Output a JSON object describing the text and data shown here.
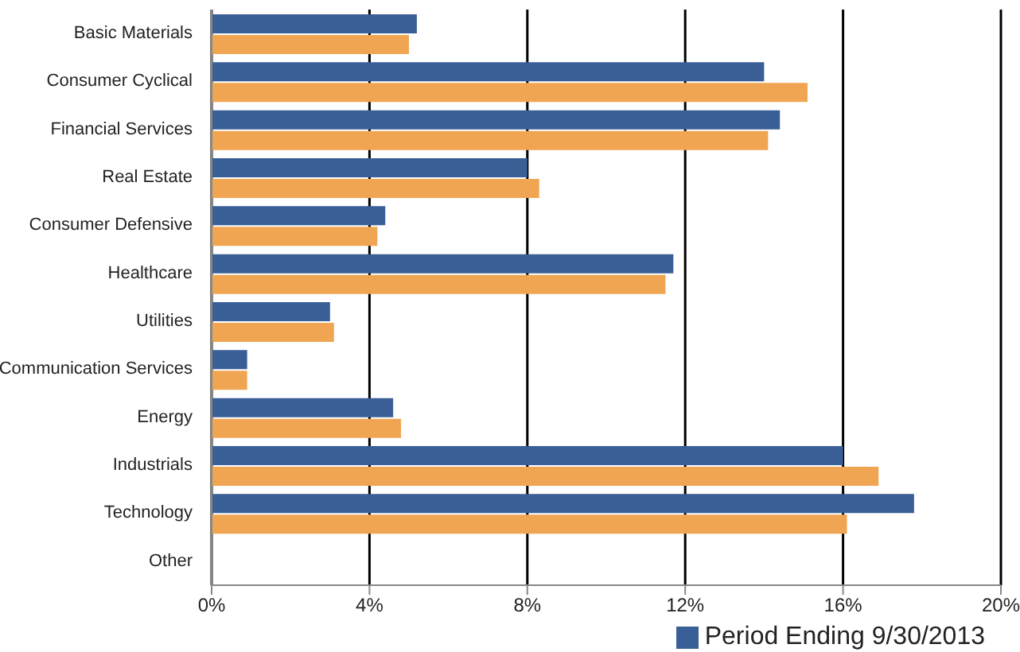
{
  "chart_data": {
    "type": "bar",
    "orientation": "horizontal",
    "categories": [
      "Basic Materials",
      "Consumer Cyclical",
      "Financial Services",
      "Real Estate",
      "Consumer Defensive",
      "Healthcare",
      "Utilities",
      "Communication Services",
      "Energy",
      "Industrials",
      "Technology",
      "Other"
    ],
    "series": [
      {
        "name": "Period Ending 9/30/2013",
        "color": "#3a5f96",
        "values": [
          5.2,
          14.0,
          14.4,
          8.0,
          4.4,
          11.7,
          3.0,
          0.9,
          4.6,
          16.0,
          17.8,
          null
        ]
      },
      {
        "color": "#f0a552",
        "values": [
          5.0,
          15.1,
          14.1,
          8.3,
          4.2,
          11.5,
          3.1,
          0.9,
          4.8,
          16.9,
          16.1,
          null
        ]
      }
    ],
    "xlim": [
      0,
      20
    ],
    "xticks": [
      {
        "value": 0,
        "label": "0%"
      },
      {
        "value": 4,
        "label": "4%"
      },
      {
        "value": 8,
        "label": "8%"
      },
      {
        "value": 12,
        "label": "12%"
      },
      {
        "value": 16,
        "label": "16%"
      },
      {
        "value": 20,
        "label": "20%"
      }
    ],
    "grid": "x",
    "legend": "bottom right"
  }
}
